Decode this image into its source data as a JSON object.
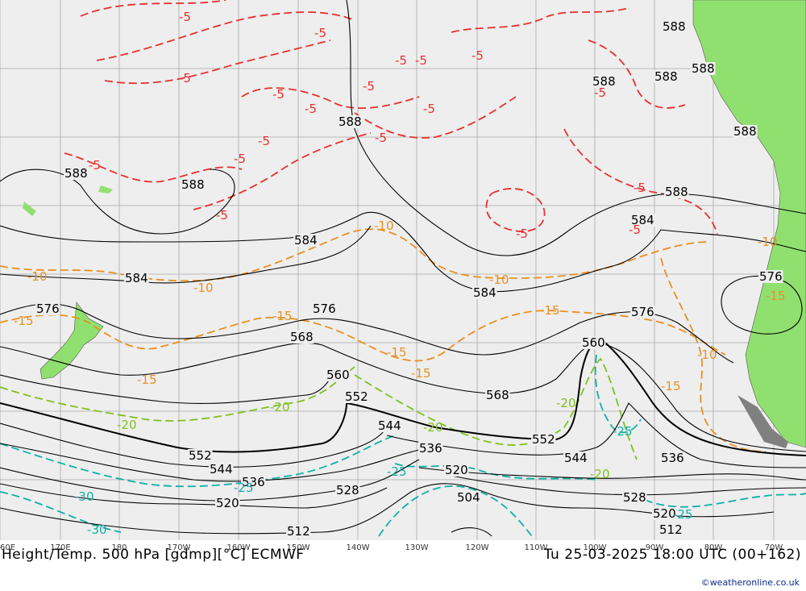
{
  "title_left": "Height/Temp. 500 hPa [gdmp][°C] ECMWF",
  "title_right": "Tu 25-03-2025 18:00 UTC (00+162)",
  "credit": "©weatheronline.co.uk",
  "colors": {
    "ocean": "#eeeeee",
    "land": "#90e070",
    "height": "#000000",
    "temp_minus5": "#e83030",
    "temp_minus10": "#e89020",
    "temp_minus20": "#80c020",
    "temp_minus25": "#10b0a8"
  },
  "longitude_ticks": [
    "60E",
    "170E",
    "180",
    "170W",
    "160W",
    "150W",
    "140W",
    "130W",
    "120W",
    "110W",
    "100W",
    "90W",
    "80W",
    "70W"
  ],
  "height_labels": [
    "588",
    "588",
    "588",
    "588",
    "588",
    "588",
    "588",
    "588",
    "588",
    "584",
    "584",
    "584",
    "584",
    "576",
    "576",
    "576",
    "576",
    "568",
    "568",
    "560",
    "560",
    "552",
    "552",
    "552",
    "544",
    "544",
    "544",
    "536",
    "536",
    "536",
    "528",
    "528",
    "520",
    "520",
    "520",
    "512",
    "512",
    "504"
  ],
  "temp_labels": [
    "-5",
    "-5",
    "-5",
    "-5",
    "-5",
    "-5",
    "-5",
    "-5",
    "-5",
    "-5",
    "-5",
    "-5",
    "-5",
    "-5",
    "-5",
    "-5",
    "-5",
    "-5",
    "-5",
    "-10",
    "-10",
    "-10",
    "-10",
    "-10",
    "-10",
    "-15",
    "-15",
    "-15",
    "-15",
    "-15",
    "-15",
    "-15",
    "-15",
    "-20",
    "-20",
    "-20",
    "-20",
    "-20",
    "-25",
    "-25",
    "-25",
    "-25",
    "-30",
    "-30"
  ]
}
